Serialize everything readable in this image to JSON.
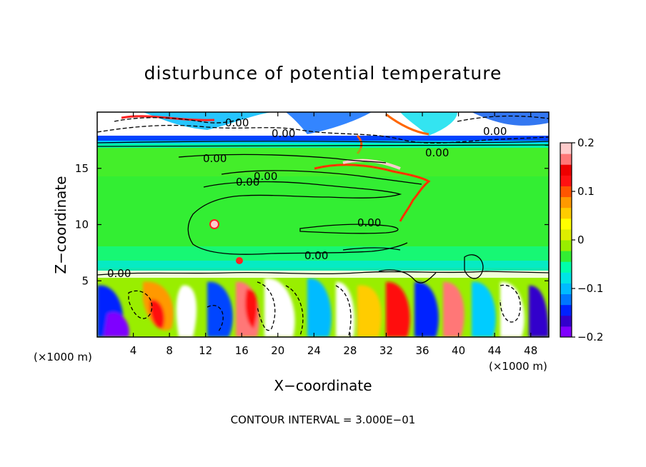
{
  "chart_data": {
    "type": "heatmap",
    "title": "disturbunce of potential temperature",
    "xlabel": "X−coordinate",
    "ylabel": "Z−coordinate",
    "x_unit": "(×1000 m)",
    "z_unit": "(×1000 m)",
    "xlim": [
      0,
      50
    ],
    "ylim": [
      0,
      20
    ],
    "x_ticks": [
      4,
      8,
      12,
      16,
      20,
      24,
      28,
      32,
      36,
      40,
      44,
      48
    ],
    "y_ticks": [
      5,
      10,
      15
    ],
    "colorbar": {
      "range": [
        -0.2,
        0.2
      ],
      "ticks": [
        0.2,
        0.1,
        0,
        -0.1,
        -0.2
      ],
      "tick_labels": [
        "0.2",
        "0.1",
        "0",
        "−0.1",
        "−0.2"
      ],
      "colors": [
        "#7f00ff",
        "#3300cc",
        "#0022ff",
        "#0077ff",
        "#00bbff",
        "#00e5e5",
        "#00ffaa",
        "#33ee33",
        "#99ee00",
        "#ddee00",
        "#ffff00",
        "#ffcc00",
        "#ff9900",
        "#ff5500",
        "#ff1111",
        "#ee0000",
        "#ff7777",
        "#ffcccc"
      ]
    },
    "contour_labels": [
      "0.00",
      "0.00",
      "0.00",
      "0.00",
      "0.00",
      "0.00",
      "0.00",
      "0.00",
      "0.00",
      "0.00"
    ],
    "footer": "CONTOUR INTERVAL = 3.000E−01"
  }
}
